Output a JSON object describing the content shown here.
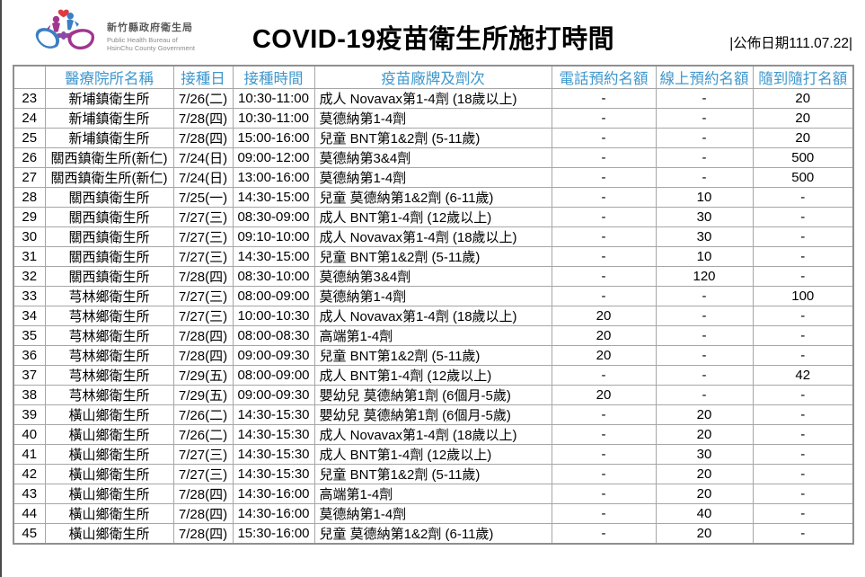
{
  "header": {
    "logo": {
      "org_name": "新竹縣政府衛生局",
      "org_name_en_line1": "Public Health Bureau of",
      "org_name_en_line2": "HsinChu County Government"
    },
    "title": "COVID-19疫苗衛生所施打時間",
    "publish_date": "|公佈日期111.07.22|"
  },
  "table": {
    "columns": [
      "",
      "醫療院所名稱",
      "接種日",
      "接種時間",
      "疫苗廠牌及劑次",
      "電話預約名額",
      "線上預約名額",
      "隨到隨打名額"
    ],
    "rows": [
      [
        "23",
        "新埔鎮衛生所",
        "7/26(二)",
        "10:30-11:00",
        "成人 Novavax第1-4劑 (18歲以上)",
        "-",
        "-",
        "20"
      ],
      [
        "24",
        "新埔鎮衛生所",
        "7/28(四)",
        "10:30-11:00",
        "莫德納第1-4劑",
        "-",
        "-",
        "20"
      ],
      [
        "25",
        "新埔鎮衛生所",
        "7/28(四)",
        "15:00-16:00",
        "兒童 BNT第1&2劑 (5-11歲)",
        "-",
        "-",
        "20"
      ],
      [
        "26",
        "關西鎮衛生所(新仁)",
        "7/24(日)",
        "09:00-12:00",
        "莫德納第3&4劑",
        "-",
        "-",
        "500"
      ],
      [
        "27",
        "關西鎮衛生所(新仁)",
        "7/24(日)",
        "13:00-16:00",
        "莫德納第1-4劑",
        "-",
        "-",
        "500"
      ],
      [
        "28",
        "關西鎮衛生所",
        "7/25(一)",
        "14:30-15:00",
        "兒童 莫德納第1&2劑 (6-11歲)",
        "-",
        "10",
        "-"
      ],
      [
        "29",
        "關西鎮衛生所",
        "7/27(三)",
        "08:30-09:00",
        "成人 BNT第1-4劑 (12歲以上)",
        "-",
        "30",
        "-"
      ],
      [
        "30",
        "關西鎮衛生所",
        "7/27(三)",
        "09:10-10:00",
        "成人 Novavax第1-4劑 (18歲以上)",
        "-",
        "30",
        "-"
      ],
      [
        "31",
        "關西鎮衛生所",
        "7/27(三)",
        "14:30-15:00",
        "兒童 BNT第1&2劑 (5-11歲)",
        "-",
        "10",
        "-"
      ],
      [
        "32",
        "關西鎮衛生所",
        "7/28(四)",
        "08:30-10:00",
        "莫德納第3&4劑",
        "-",
        "120",
        "-"
      ],
      [
        "33",
        "芎林鄉衛生所",
        "7/27(三)",
        "08:00-09:00",
        "莫德納第1-4劑",
        "-",
        "-",
        "100"
      ],
      [
        "34",
        "芎林鄉衛生所",
        "7/27(三)",
        "10:00-10:30",
        "成人 Novavax第1-4劑 (18歲以上)",
        "20",
        "-",
        "-"
      ],
      [
        "35",
        "芎林鄉衛生所",
        "7/28(四)",
        "08:00-08:30",
        "高端第1-4劑",
        "20",
        "-",
        "-"
      ],
      [
        "36",
        "芎林鄉衛生所",
        "7/28(四)",
        "09:00-09:30",
        "兒童 BNT第1&2劑 (5-11歲)",
        "20",
        "-",
        "-"
      ],
      [
        "37",
        "芎林鄉衛生所",
        "7/29(五)",
        "08:00-09:00",
        "成人 BNT第1-4劑 (12歲以上)",
        "-",
        "-",
        "42"
      ],
      [
        "38",
        "芎林鄉衛生所",
        "7/29(五)",
        "09:00-09:30",
        "嬰幼兒 莫德納第1劑 (6個月-5歲)",
        "20",
        "-",
        "-"
      ],
      [
        "39",
        "橫山鄉衛生所",
        "7/26(二)",
        "14:30-15:30",
        "嬰幼兒 莫德納第1劑 (6個月-5歲)",
        "-",
        "20",
        "-"
      ],
      [
        "40",
        "橫山鄉衛生所",
        "7/26(二)",
        "14:30-15:30",
        "成人 Novavax第1-4劑 (18歲以上)",
        "-",
        "20",
        "-"
      ],
      [
        "41",
        "橫山鄉衛生所",
        "7/27(三)",
        "14:30-15:30",
        "成人 BNT第1-4劑 (12歲以上)",
        "-",
        "30",
        "-"
      ],
      [
        "42",
        "橫山鄉衛生所",
        "7/27(三)",
        "14:30-15:30",
        "兒童 BNT第1&2劑 (5-11歲)",
        "-",
        "20",
        "-"
      ],
      [
        "43",
        "橫山鄉衛生所",
        "7/28(四)",
        "14:30-16:00",
        "高端第1-4劑",
        "-",
        "20",
        "-"
      ],
      [
        "44",
        "橫山鄉衛生所",
        "7/28(四)",
        "14:30-16:00",
        "莫德納第1-4劑",
        "-",
        "40",
        "-"
      ],
      [
        "45",
        "橫山鄉衛生所",
        "7/28(四)",
        "15:30-16:00",
        "兒童 莫德納第1&2劑 (6-11歲)",
        "-",
        "20",
        "-"
      ]
    ],
    "cell_names": [
      "row-number",
      "clinic-name",
      "vaccination-date",
      "vaccination-time",
      "vaccine-brand-dose",
      "phone-reservation-quota",
      "online-reservation-quota",
      "walkin-quota"
    ]
  },
  "colors": {
    "header_text": "#3f97cc",
    "grid_border": "#a6a6a6",
    "logo_blue": "#3a7fc2",
    "logo_purple": "#a0368f",
    "logo_heart_red": "#e0393e",
    "title_text": "#000000"
  }
}
